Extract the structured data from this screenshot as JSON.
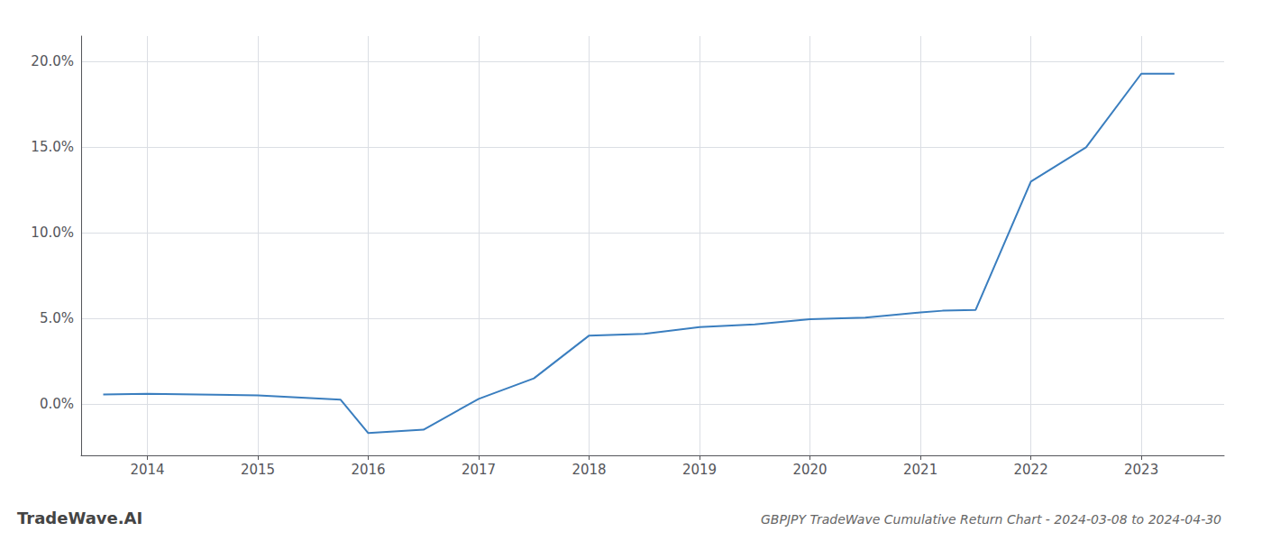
{
  "chart_data": {
    "type": "line",
    "title": "GBPJPY TradeWave Cumulative Return Chart - 2024-03-08 to 2024-04-30",
    "annotations": [
      "TradeWave.AI"
    ],
    "x": [
      2013.6,
      2014.0,
      2015.0,
      2015.75,
      2016.0,
      2016.5,
      2017.0,
      2017.5,
      2018.0,
      2018.5,
      2019.0,
      2019.5,
      2020.0,
      2020.5,
      2021.0,
      2021.2,
      2021.5,
      2022.0,
      2022.5,
      2023.0,
      2023.3
    ],
    "values": [
      0.55,
      0.6,
      0.5,
      0.25,
      -1.7,
      -1.5,
      0.3,
      1.5,
      4.0,
      4.1,
      4.5,
      4.65,
      4.95,
      5.05,
      5.35,
      5.45,
      5.5,
      13.0,
      15.0,
      19.3,
      19.3
    ],
    "color": "#3a7ebf",
    "xlim": [
      2013.4,
      2023.75
    ],
    "ylim": [
      -3.0,
      21.5
    ],
    "xticks": [
      2014,
      2015,
      2016,
      2017,
      2018,
      2019,
      2020,
      2021,
      2022,
      2023
    ],
    "yticks": [
      {
        "value": 0.0,
        "label": "0.0%"
      },
      {
        "value": 5.0,
        "label": "5.0%"
      },
      {
        "value": 10.0,
        "label": "10.0%"
      },
      {
        "value": 15.0,
        "label": "15.0%"
      },
      {
        "value": 20.0,
        "label": "20.0%"
      }
    ],
    "grid": true
  }
}
